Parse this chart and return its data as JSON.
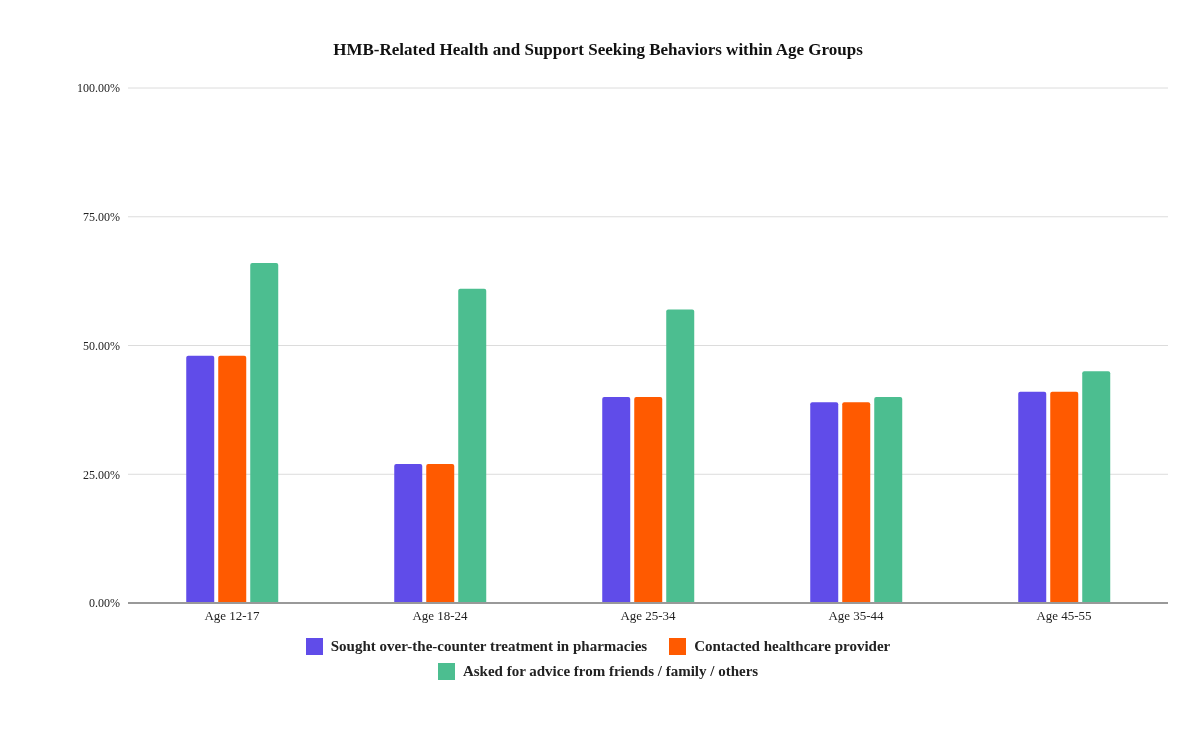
{
  "chart_data": {
    "type": "bar",
    "title": "HMB-Related Health and Support Seeking Behaviors within Age Groups",
    "categories": [
      "Age 12-17",
      "Age 18-24",
      "Age 25-34",
      "Age 35-44",
      "Age 45-55"
    ],
    "series": [
      {
        "name": "Sought over-the-counter treatment in pharmacies",
        "color": "#604ce9",
        "values": [
          48,
          27,
          40,
          39,
          41
        ]
      },
      {
        "name": "Contacted healthcare provider",
        "color": "#ff5a00",
        "values": [
          48,
          27,
          40,
          39,
          41
        ]
      },
      {
        "name": "Asked for advice from friends / family / others",
        "color": "#4cbe90",
        "values": [
          66,
          61,
          57,
          40,
          45
        ]
      }
    ],
    "ylim": [
      0,
      100
    ],
    "yticks": [
      {
        "value": 0,
        "label": "0.00%"
      },
      {
        "value": 25,
        "label": "25.00%"
      },
      {
        "value": 50,
        "label": "50.00%"
      },
      {
        "value": 75,
        "label": "75.00%"
      },
      {
        "value": 100,
        "label": "100.00%"
      }
    ],
    "grid": "y",
    "legend": "bottom"
  }
}
